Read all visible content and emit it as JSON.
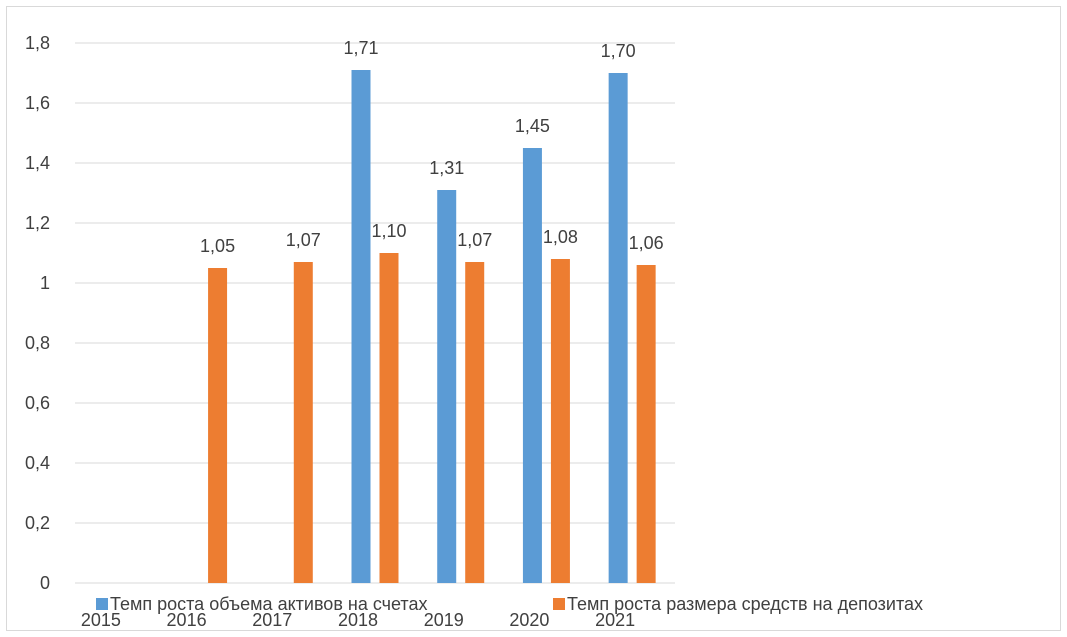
{
  "chart_data": {
    "type": "bar",
    "categories": [
      "2015",
      "2016",
      "2017",
      "2018",
      "2019",
      "2020",
      "2021"
    ],
    "series": [
      {
        "name": "Темп роста объема активов на счетах",
        "values": [
          null,
          null,
          null,
          1.71,
          1.31,
          1.45,
          1.7
        ],
        "labels": [
          "",
          "",
          "",
          "1,71",
          "1,31",
          "1,45",
          "1,70"
        ],
        "color": "#5b9bd5"
      },
      {
        "name": "Темп роста размера средств на депозитах",
        "values": [
          null,
          1.05,
          1.07,
          1.1,
          1.07,
          1.08,
          1.06
        ],
        "labels": [
          "",
          "1,05",
          "1,07",
          "1,10",
          "1,07",
          "1,08",
          "1,06"
        ],
        "color": "#ed7d31"
      }
    ],
    "y_ticks": [
      "0",
      "0,2",
      "0,4",
      "0,6",
      "0,8",
      "1",
      "1,2",
      "1,4",
      "1,6",
      "1,8"
    ],
    "ylim": [
      0,
      1.8
    ],
    "grid": true,
    "legend_position": "bottom",
    "gridline_color": "#d9d9d9"
  }
}
